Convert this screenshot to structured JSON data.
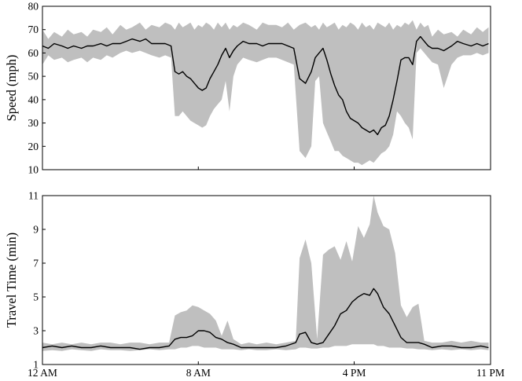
{
  "chart_data": [
    {
      "type": "area",
      "ylabel": "Speed (mph)",
      "ylim": [
        10,
        80
      ],
      "yticks": [
        10,
        20,
        30,
        40,
        50,
        60,
        70,
        80
      ],
      "xlim": [
        0,
        23
      ],
      "x_unit": "hours after 12 AM",
      "x_ticks": [
        {
          "value": 0,
          "label": "12 AM"
        },
        {
          "value": 8,
          "label": "8 AM"
        },
        {
          "value": 16,
          "label": "4 PM"
        },
        {
          "value": 23,
          "label": "11 PM"
        }
      ],
      "series": [
        {
          "role": "median",
          "x": [
            0,
            0.3,
            0.6,
            1,
            1.3,
            1.6,
            2,
            2.3,
            2.6,
            3,
            3.3,
            3.6,
            4,
            4.3,
            4.6,
            5,
            5.3,
            5.6,
            6,
            6.3,
            6.6,
            6.8,
            7,
            7.2,
            7.4,
            7.6,
            7.8,
            8,
            8.2,
            8.4,
            8.6,
            8.8,
            9,
            9.2,
            9.4,
            9.6,
            9.8,
            10,
            10.3,
            10.6,
            11,
            11.3,
            11.6,
            12,
            12.3,
            12.6,
            12.9,
            13.2,
            13.5,
            13.8,
            14,
            14.2,
            14.4,
            14.6,
            14.8,
            15,
            15.2,
            15.4,
            15.6,
            15.8,
            16,
            16.2,
            16.4,
            16.6,
            16.8,
            17,
            17.2,
            17.4,
            17.6,
            17.8,
            18,
            18.2,
            18.4,
            18.6,
            18.8,
            19,
            19.2,
            19.4,
            19.6,
            19.8,
            20,
            20.3,
            20.6,
            21,
            21.3,
            21.6,
            22,
            22.3,
            22.6,
            22.9
          ],
          "values": [
            63,
            62,
            64,
            63,
            62,
            63,
            62,
            63,
            63,
            64,
            63,
            64,
            64,
            65,
            66,
            65,
            66,
            64,
            64,
            64,
            63,
            52,
            51,
            52,
            50,
            49,
            47,
            45,
            44,
            45,
            49,
            52,
            55,
            59,
            62,
            58,
            61,
            63,
            65,
            64,
            64,
            63,
            64,
            64,
            64,
            63,
            62,
            49,
            47,
            52,
            58,
            60,
            62,
            57,
            51,
            46,
            42,
            40,
            35,
            32,
            31,
            30,
            28,
            27,
            26,
            27,
            25,
            28,
            29,
            33,
            40,
            48,
            57,
            58,
            58,
            55,
            65,
            67,
            65,
            63,
            62,
            62,
            61,
            63,
            65,
            64,
            63,
            64,
            63,
            64
          ]
        },
        {
          "role": "band-upper",
          "x": [
            0,
            0.3,
            0.6,
            1,
            1.3,
            1.6,
            2,
            2.3,
            2.6,
            3,
            3.3,
            3.6,
            4,
            4.3,
            4.6,
            5,
            5.3,
            5.6,
            6,
            6.3,
            6.6,
            6.8,
            7,
            7.2,
            7.4,
            7.6,
            7.8,
            8,
            8.2,
            8.4,
            8.6,
            8.8,
            9,
            9.2,
            9.4,
            9.6,
            9.8,
            10,
            10.3,
            10.6,
            11,
            11.3,
            11.6,
            12,
            12.3,
            12.6,
            12.9,
            13.2,
            13.5,
            13.8,
            14,
            14.2,
            14.4,
            14.6,
            14.8,
            15,
            15.2,
            15.4,
            15.6,
            15.8,
            16,
            16.2,
            16.4,
            16.6,
            16.8,
            17,
            17.2,
            17.4,
            17.6,
            17.8,
            18,
            18.2,
            18.4,
            18.6,
            18.8,
            19,
            19.2,
            19.4,
            19.6,
            19.8,
            20,
            20.3,
            20.6,
            21,
            21.3,
            21.6,
            22,
            22.3,
            22.6,
            22.9
          ],
          "values": [
            70,
            66,
            69,
            67,
            70,
            68,
            69,
            67,
            70,
            69,
            71,
            68,
            72,
            70,
            71,
            73,
            70,
            72,
            71,
            73,
            72,
            70,
            73,
            71,
            72,
            73,
            70,
            72,
            71,
            73,
            72,
            70,
            73,
            71,
            73,
            70,
            72,
            71,
            73,
            72,
            70,
            73,
            72,
            72,
            71,
            73,
            70,
            72,
            73,
            71,
            72,
            70,
            73,
            71,
            72,
            73,
            70,
            72,
            71,
            73,
            72,
            70,
            73,
            71,
            72,
            70,
            73,
            72,
            71,
            73,
            70,
            72,
            71,
            73,
            72,
            74,
            70,
            73,
            71,
            72,
            67,
            70,
            68,
            69,
            67,
            70,
            68,
            71,
            69,
            71
          ]
        },
        {
          "role": "band-lower",
          "x": [
            0,
            0.3,
            0.6,
            1,
            1.3,
            1.6,
            2,
            2.3,
            2.6,
            3,
            3.3,
            3.6,
            4,
            4.3,
            4.6,
            5,
            5.3,
            5.6,
            6,
            6.3,
            6.6,
            6.8,
            7,
            7.2,
            7.4,
            7.6,
            7.8,
            8,
            8.2,
            8.4,
            8.6,
            8.8,
            9,
            9.2,
            9.4,
            9.6,
            9.8,
            10,
            10.3,
            10.6,
            11,
            11.3,
            11.6,
            12,
            12.3,
            12.6,
            12.9,
            13.2,
            13.5,
            13.8,
            14,
            14.2,
            14.4,
            14.6,
            14.8,
            15,
            15.2,
            15.4,
            15.6,
            15.8,
            16,
            16.2,
            16.4,
            16.6,
            16.8,
            17,
            17.2,
            17.4,
            17.6,
            17.8,
            18,
            18.2,
            18.4,
            18.6,
            18.8,
            19,
            19.2,
            19.4,
            19.6,
            19.8,
            20,
            20.3,
            20.6,
            21,
            21.3,
            21.6,
            22,
            22.3,
            22.6,
            22.9
          ],
          "values": [
            55,
            59,
            57,
            58,
            56,
            57,
            58,
            56,
            58,
            57,
            59,
            58,
            60,
            61,
            60,
            61,
            60,
            59,
            58,
            59,
            58,
            33,
            33,
            35,
            33,
            31,
            30,
            29,
            28,
            29,
            33,
            36,
            38,
            40,
            48,
            35,
            50,
            55,
            58,
            57,
            56,
            57,
            58,
            58,
            57,
            56,
            55,
            18,
            15,
            20,
            48,
            50,
            30,
            26,
            22,
            18,
            18,
            16,
            15,
            14,
            13,
            13,
            12,
            13,
            14,
            13,
            15,
            17,
            18,
            20,
            25,
            35,
            33,
            30,
            28,
            23,
            60,
            62,
            60,
            58,
            56,
            55,
            45,
            55,
            58,
            59,
            59,
            60,
            59,
            60
          ]
        }
      ]
    },
    {
      "type": "area",
      "ylabel": "Travel Time (min)",
      "ylim": [
        1,
        11
      ],
      "yticks": [
        1,
        3,
        5,
        7,
        9,
        11
      ],
      "xlim": [
        0,
        23
      ],
      "x_unit": "hours after 12 AM",
      "x_ticks": [
        {
          "value": 0,
          "label": "12 AM"
        },
        {
          "value": 8,
          "label": "8 AM"
        },
        {
          "value": 16,
          "label": "4 PM"
        },
        {
          "value": 23,
          "label": "11 PM"
        }
      ],
      "series": [
        {
          "role": "median",
          "x": [
            0,
            0.5,
            1,
            1.5,
            2,
            2.5,
            3,
            3.5,
            4,
            4.5,
            5,
            5.5,
            6,
            6.5,
            6.8,
            7.1,
            7.4,
            7.7,
            8,
            8.3,
            8.6,
            8.9,
            9.2,
            9.5,
            9.8,
            10.2,
            10.6,
            11,
            11.5,
            12,
            12.5,
            13,
            13.2,
            13.5,
            13.8,
            14.1,
            14.4,
            14.7,
            15,
            15.3,
            15.6,
            15.9,
            16.2,
            16.5,
            16.8,
            17,
            17.2,
            17.5,
            17.8,
            18.1,
            18.4,
            18.7,
            19,
            19.3,
            19.6,
            20,
            20.5,
            21,
            21.5,
            22,
            22.5,
            22.9
          ],
          "values": [
            2.0,
            2.1,
            2.0,
            2.1,
            2.0,
            2.0,
            2.1,
            2.0,
            2.0,
            2.0,
            1.9,
            2.0,
            2.0,
            2.1,
            2.5,
            2.6,
            2.6,
            2.7,
            3.0,
            3.0,
            2.9,
            2.6,
            2.5,
            2.3,
            2.2,
            2.0,
            2.0,
            2.0,
            2.0,
            2.0,
            2.1,
            2.3,
            2.8,
            2.9,
            2.3,
            2.2,
            2.3,
            2.8,
            3.3,
            4.0,
            4.2,
            4.7,
            5.0,
            5.2,
            5.1,
            5.5,
            5.2,
            4.4,
            4.0,
            3.3,
            2.6,
            2.3,
            2.3,
            2.3,
            2.2,
            2.0,
            2.1,
            2.1,
            2.0,
            2.0,
            2.1,
            2.0
          ]
        },
        {
          "role": "band-upper",
          "x": [
            0,
            0.5,
            1,
            1.5,
            2,
            2.5,
            3,
            3.5,
            4,
            4.5,
            5,
            5.5,
            6,
            6.5,
            6.8,
            7.1,
            7.4,
            7.7,
            8,
            8.3,
            8.6,
            8.9,
            9.2,
            9.5,
            9.8,
            10.2,
            10.6,
            11,
            11.5,
            12,
            12.5,
            13,
            13.2,
            13.5,
            13.8,
            14.1,
            14.4,
            14.7,
            15,
            15.3,
            15.6,
            15.9,
            16.2,
            16.5,
            16.8,
            17,
            17.2,
            17.5,
            17.8,
            18.1,
            18.4,
            18.7,
            19,
            19.3,
            19.6,
            20,
            20.5,
            21,
            21.5,
            22,
            22.5,
            22.9
          ],
          "values": [
            2.3,
            2.2,
            2.3,
            2.2,
            2.3,
            2.2,
            2.3,
            2.3,
            2.2,
            2.3,
            2.3,
            2.2,
            2.3,
            2.3,
            3.9,
            4.1,
            4.2,
            4.5,
            4.4,
            4.2,
            4.0,
            3.6,
            2.7,
            3.6,
            2.5,
            2.2,
            2.3,
            2.2,
            2.3,
            2.2,
            2.3,
            2.4,
            7.3,
            8.4,
            7.0,
            2.5,
            7.5,
            7.8,
            8.0,
            7.2,
            8.3,
            7.1,
            9.2,
            8.5,
            9.3,
            11.0,
            10.0,
            9.2,
            9.0,
            7.6,
            4.5,
            3.8,
            4.4,
            4.6,
            2.4,
            2.3,
            2.3,
            2.4,
            2.3,
            2.4,
            2.3,
            2.3
          ]
        },
        {
          "role": "band-lower",
          "x": [
            0,
            0.5,
            1,
            1.5,
            2,
            2.5,
            3,
            3.5,
            4,
            4.5,
            5,
            5.5,
            6,
            6.5,
            6.8,
            7.1,
            7.4,
            7.7,
            8,
            8.3,
            8.6,
            8.9,
            9.2,
            9.5,
            9.8,
            10.2,
            10.6,
            11,
            11.5,
            12,
            12.5,
            13,
            13.2,
            13.5,
            13.8,
            14.1,
            14.4,
            14.7,
            15,
            15.3,
            15.6,
            15.9,
            16.2,
            16.5,
            16.8,
            17,
            17.2,
            17.5,
            17.8,
            18.1,
            18.4,
            18.7,
            19,
            19.3,
            19.6,
            20,
            20.5,
            21,
            21.5,
            22,
            22.5,
            22.9
          ],
          "values": [
            1.8,
            1.85,
            1.8,
            1.9,
            1.85,
            1.8,
            1.9,
            1.85,
            1.85,
            1.8,
            1.85,
            1.9,
            1.85,
            1.9,
            1.9,
            2.0,
            2.0,
            2.1,
            2.1,
            2.0,
            2.0,
            2.0,
            1.9,
            1.9,
            1.9,
            1.85,
            1.9,
            1.85,
            1.85,
            1.9,
            1.85,
            1.9,
            2.0,
            2.0,
            1.95,
            1.95,
            2.0,
            2.0,
            2.1,
            2.1,
            2.1,
            2.2,
            2.2,
            2.2,
            2.2,
            2.2,
            2.1,
            2.1,
            2.0,
            2.0,
            2.0,
            1.95,
            1.95,
            1.9,
            1.9,
            1.85,
            1.9,
            1.85,
            1.9,
            1.85,
            1.9,
            1.85
          ]
        }
      ]
    }
  ]
}
